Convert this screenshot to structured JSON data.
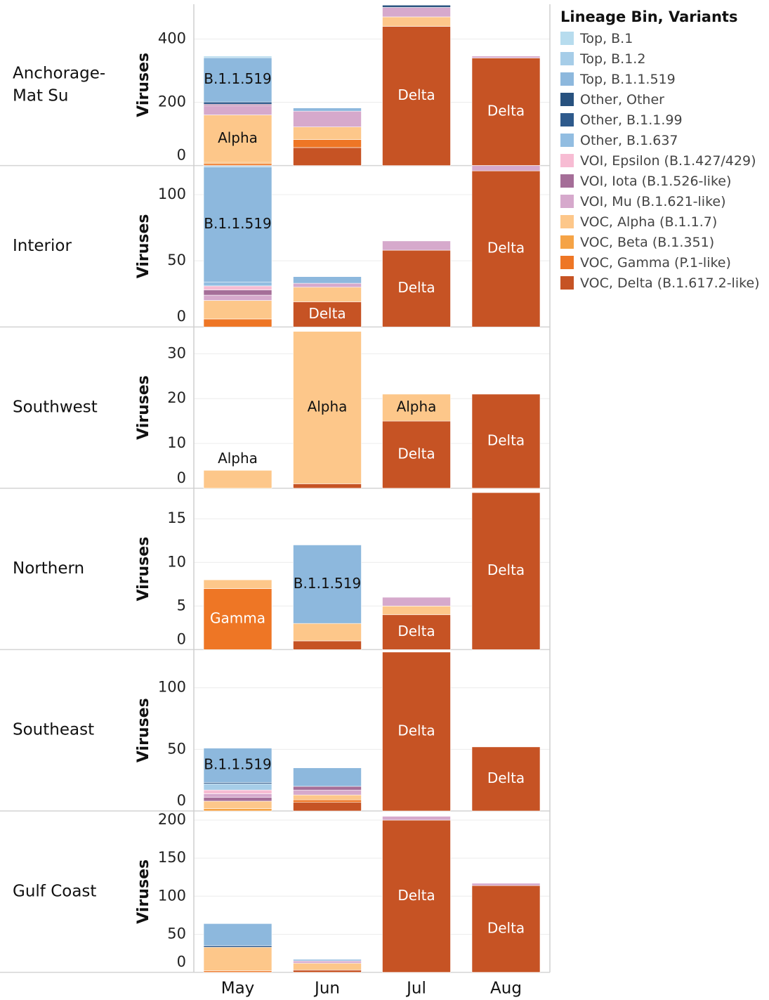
{
  "chart_data": {
    "type": "bar",
    "stacked": true,
    "months": [
      "May",
      "Jun",
      "Jul",
      "Aug"
    ],
    "ylabel": "Viruses",
    "legend_title": "Lineage Bin, Variants",
    "legend_position": "right",
    "grid": true,
    "variants": [
      {
        "name": "Top, B.1",
        "color": "#b7dcee"
      },
      {
        "name": "Top, B.1.2",
        "color": "#a6cde8"
      },
      {
        "name": "Top, B.1.1.519",
        "color": "#8db8dd"
      },
      {
        "name": "Other,  Other",
        "color": "#28527f"
      },
      {
        "name": "Other, B.1.1.99",
        "color": "#2e5a8c"
      },
      {
        "name": "Other, B.1.637",
        "color": "#92bde1"
      },
      {
        "name": "VOI, Epsilon (B.1.427/429)",
        "color": "#f7bcd3"
      },
      {
        "name": "VOI, Iota (B.1.526-like)",
        "color": "#a56e98"
      },
      {
        "name": "VOI, Mu (B.1.621-like)",
        "color": "#d6a9cc"
      },
      {
        "name": "VOC, Alpha (B.1.1.7)",
        "color": "#fdc78a"
      },
      {
        "name": "VOC, Beta (B.1.351)",
        "color": "#f5a346"
      },
      {
        "name": "VOC, Gamma (P.1-like)",
        "color": "#ee7625"
      },
      {
        "name": "VOC, Delta (B.1.617.2-like)",
        "color": "#c65324"
      }
    ],
    "panels": [
      {
        "region": "Anchorage-\nMat Su",
        "ylim": [
          0,
          510
        ],
        "ticks": [
          0,
          200,
          400
        ],
        "bars": [
          {
            "month": "May",
            "segments": [
              {
                "variant": "VOC, Gamma (P.1-like)",
                "value": 6
              },
              {
                "variant": "VOC, Beta (B.1.351)",
                "value": 4
              },
              {
                "variant": "VOC, Alpha (B.1.1.7)",
                "value": 150,
                "label": "Alpha"
              },
              {
                "variant": "VOI, Mu (B.1.621-like)",
                "value": 30
              },
              {
                "variant": "VOI, Iota (B.1.526-like)",
                "value": 4
              },
              {
                "variant": "Other, B.1.1.99",
                "value": 7
              },
              {
                "variant": "Top, B.1.1.519",
                "value": 140,
                "label": "B.1.1.519"
              },
              {
                "variant": "Top, B.1",
                "value": 5
              }
            ]
          },
          {
            "month": "Jun",
            "segments": [
              {
                "variant": "VOC, Delta (B.1.617.2-like)",
                "value": 57
              },
              {
                "variant": "VOC, Gamma (P.1-like)",
                "value": 25
              },
              {
                "variant": "VOC, Alpha (B.1.1.7)",
                "value": 40
              },
              {
                "variant": "VOI, Mu (B.1.621-like)",
                "value": 50
              },
              {
                "variant": "Top, B.1.1.519",
                "value": 10
              }
            ]
          },
          {
            "month": "Jul",
            "segments": [
              {
                "variant": "VOC, Delta (B.1.617.2-like)",
                "value": 440,
                "label": "Delta"
              },
              {
                "variant": "VOC, Alpha (B.1.1.7)",
                "value": 30
              },
              {
                "variant": "VOI, Mu (B.1.621-like)",
                "value": 30
              },
              {
                "variant": "Other,  Other",
                "value": 7
              }
            ]
          },
          {
            "month": "Aug",
            "segments": [
              {
                "variant": "VOC, Delta (B.1.617.2-like)",
                "value": 340,
                "label": "Delta"
              },
              {
                "variant": "VOI, Mu (B.1.621-like)",
                "value": 6
              }
            ]
          }
        ]
      },
      {
        "region": "Interior",
        "ylim": [
          0,
          122
        ],
        "ticks": [
          0,
          50,
          100
        ],
        "bars": [
          {
            "month": "May",
            "segments": [
              {
                "variant": "VOC, Gamma (P.1-like)",
                "value": 6
              },
              {
                "variant": "VOC, Alpha (B.1.1.7)",
                "value": 14
              },
              {
                "variant": "VOI, Mu (B.1.621-like)",
                "value": 4
              },
              {
                "variant": "VOI, Iota (B.1.526-like)",
                "value": 4
              },
              {
                "variant": "VOI, Epsilon (B.1.427/429)",
                "value": 3
              },
              {
                "variant": "Other, B.1.637",
                "value": 3
              },
              {
                "variant": "Top, B.1.1.519",
                "value": 87,
                "label": "B.1.1.519"
              },
              {
                "variant": "Top, B.1.2",
                "value": 1
              }
            ]
          },
          {
            "month": "Jun",
            "segments": [
              {
                "variant": "VOC, Delta (B.1.617.2-like)",
                "value": 19,
                "label": "Delta"
              },
              {
                "variant": "VOC, Alpha (B.1.1.7)",
                "value": 11
              },
              {
                "variant": "VOI, Mu (B.1.621-like)",
                "value": 3
              },
              {
                "variant": "Top, B.1.1.519",
                "value": 5
              }
            ]
          },
          {
            "month": "Jul",
            "segments": [
              {
                "variant": "VOC, Delta (B.1.617.2-like)",
                "value": 58,
                "label": "Delta"
              },
              {
                "variant": "VOI, Mu (B.1.621-like)",
                "value": 7
              }
            ]
          },
          {
            "month": "Aug",
            "segments": [
              {
                "variant": "VOC, Delta (B.1.617.2-like)",
                "value": 118,
                "label": "Delta"
              },
              {
                "variant": "VOI, Mu (B.1.621-like)",
                "value": 4
              }
            ]
          }
        ]
      },
      {
        "region": "Southwest",
        "ylim": [
          0,
          36
        ],
        "ticks": [
          0,
          10,
          20,
          30
        ],
        "bars": [
          {
            "month": "May",
            "segments": [
              {
                "variant": "VOC, Alpha (B.1.1.7)",
                "value": 4,
                "label": "Alpha",
                "label_above": true
              }
            ]
          },
          {
            "month": "Jun",
            "segments": [
              {
                "variant": "VOC, Delta (B.1.617.2-like)",
                "value": 1
              },
              {
                "variant": "VOC, Alpha (B.1.1.7)",
                "value": 34,
                "label": "Alpha"
              }
            ]
          },
          {
            "month": "Jul",
            "segments": [
              {
                "variant": "VOC, Delta (B.1.617.2-like)",
                "value": 15,
                "label": "Delta"
              },
              {
                "variant": "VOC, Alpha (B.1.1.7)",
                "value": 6,
                "label": "Alpha"
              }
            ]
          },
          {
            "month": "Aug",
            "segments": [
              {
                "variant": "VOC, Delta (B.1.617.2-like)",
                "value": 21,
                "label": "Delta"
              }
            ]
          }
        ]
      },
      {
        "region": "Northern",
        "ylim": [
          0,
          18.5
        ],
        "ticks": [
          0,
          5,
          10,
          15
        ],
        "bars": [
          {
            "month": "May",
            "segments": [
              {
                "variant": "VOC, Gamma (P.1-like)",
                "value": 7,
                "label": "Gamma"
              },
              {
                "variant": "VOC, Alpha (B.1.1.7)",
                "value": 1
              }
            ]
          },
          {
            "month": "Jun",
            "segments": [
              {
                "variant": "VOC, Delta (B.1.617.2-like)",
                "value": 1
              },
              {
                "variant": "VOC, Alpha (B.1.1.7)",
                "value": 2
              },
              {
                "variant": "Top, B.1.1.519",
                "value": 9,
                "label": "B.1.1.519"
              }
            ]
          },
          {
            "month": "Jul",
            "segments": [
              {
                "variant": "VOC, Delta (B.1.617.2-like)",
                "value": 4,
                "label": "Delta"
              },
              {
                "variant": "VOC, Alpha (B.1.1.7)",
                "value": 1
              },
              {
                "variant": "VOI, Mu (B.1.621-like)",
                "value": 1
              }
            ]
          },
          {
            "month": "Aug",
            "segments": [
              {
                "variant": "VOC, Delta (B.1.617.2-like)",
                "value": 18,
                "label": "Delta"
              }
            ]
          }
        ]
      },
      {
        "region": "Southeast",
        "ylim": [
          0,
          131
        ],
        "ticks": [
          0,
          50,
          100
        ],
        "bars": [
          {
            "month": "May",
            "segments": [
              {
                "variant": "VOC, Beta (B.1.351)",
                "value": 2
              },
              {
                "variant": "VOC, Alpha (B.1.1.7)",
                "value": 6
              },
              {
                "variant": "VOI, Iota (B.1.526-like)",
                "value": 3
              },
              {
                "variant": "VOI, Mu (B.1.621-like)",
                "value": 3
              },
              {
                "variant": "VOI, Epsilon (B.1.427/429)",
                "value": 3
              },
              {
                "variant": "Top, B.1.2",
                "value": 5
              },
              {
                "variant": "Other, B.1.1.99",
                "value": 1
              },
              {
                "variant": "Top, B.1.1.519",
                "value": 28,
                "label": "B.1.1.519"
              }
            ]
          },
          {
            "month": "Jun",
            "segments": [
              {
                "variant": "VOC, Delta (B.1.617.2-like)",
                "value": 7
              },
              {
                "variant": "VOC, Gamma (P.1-like)",
                "value": 2
              },
              {
                "variant": "VOC, Alpha (B.1.1.7)",
                "value": 4
              },
              {
                "variant": "VOI, Mu (B.1.621-like)",
                "value": 4
              },
              {
                "variant": "VOI, Iota (B.1.526-like)",
                "value": 3
              },
              {
                "variant": "Top, B.1.1.519",
                "value": 15
              }
            ]
          },
          {
            "month": "Jul",
            "segments": [
              {
                "variant": "VOC, Delta (B.1.617.2-like)",
                "value": 129,
                "label": "Delta"
              }
            ]
          },
          {
            "month": "Aug",
            "segments": [
              {
                "variant": "VOC, Delta (B.1.617.2-like)",
                "value": 52,
                "label": "Delta"
              }
            ]
          }
        ]
      },
      {
        "region": "Gulf Coast",
        "ylim": [
          0,
          212
        ],
        "ticks": [
          0,
          50,
          100,
          150,
          200
        ],
        "bars": [
          {
            "month": "May",
            "segments": [
              {
                "variant": "VOC, Gamma (P.1-like)",
                "value": 2
              },
              {
                "variant": "VOC, Alpha (B.1.1.7)",
                "value": 31
              },
              {
                "variant": "Other, B.1.1.99",
                "value": 2
              },
              {
                "variant": "Top, B.1.1.519",
                "value": 29
              }
            ]
          },
          {
            "month": "Jun",
            "segments": [
              {
                "variant": "VOC, Delta (B.1.617.2-like)",
                "value": 3
              },
              {
                "variant": "VOC, Alpha (B.1.1.7)",
                "value": 9
              },
              {
                "variant": "VOI, Mu (B.1.621-like)",
                "value": 3
              },
              {
                "variant": "Top, B.1.1.519",
                "value": 2
              }
            ]
          },
          {
            "month": "Jul",
            "segments": [
              {
                "variant": "VOC, Delta (B.1.617.2-like)",
                "value": 200,
                "label": "Delta"
              },
              {
                "variant": "VOI, Mu (B.1.621-like)",
                "value": 5
              }
            ]
          },
          {
            "month": "Aug",
            "segments": [
              {
                "variant": "VOC, Delta (B.1.617.2-like)",
                "value": 114,
                "label": "Delta"
              },
              {
                "variant": "VOI, Mu (B.1.621-like)",
                "value": 3
              }
            ]
          }
        ]
      }
    ]
  }
}
